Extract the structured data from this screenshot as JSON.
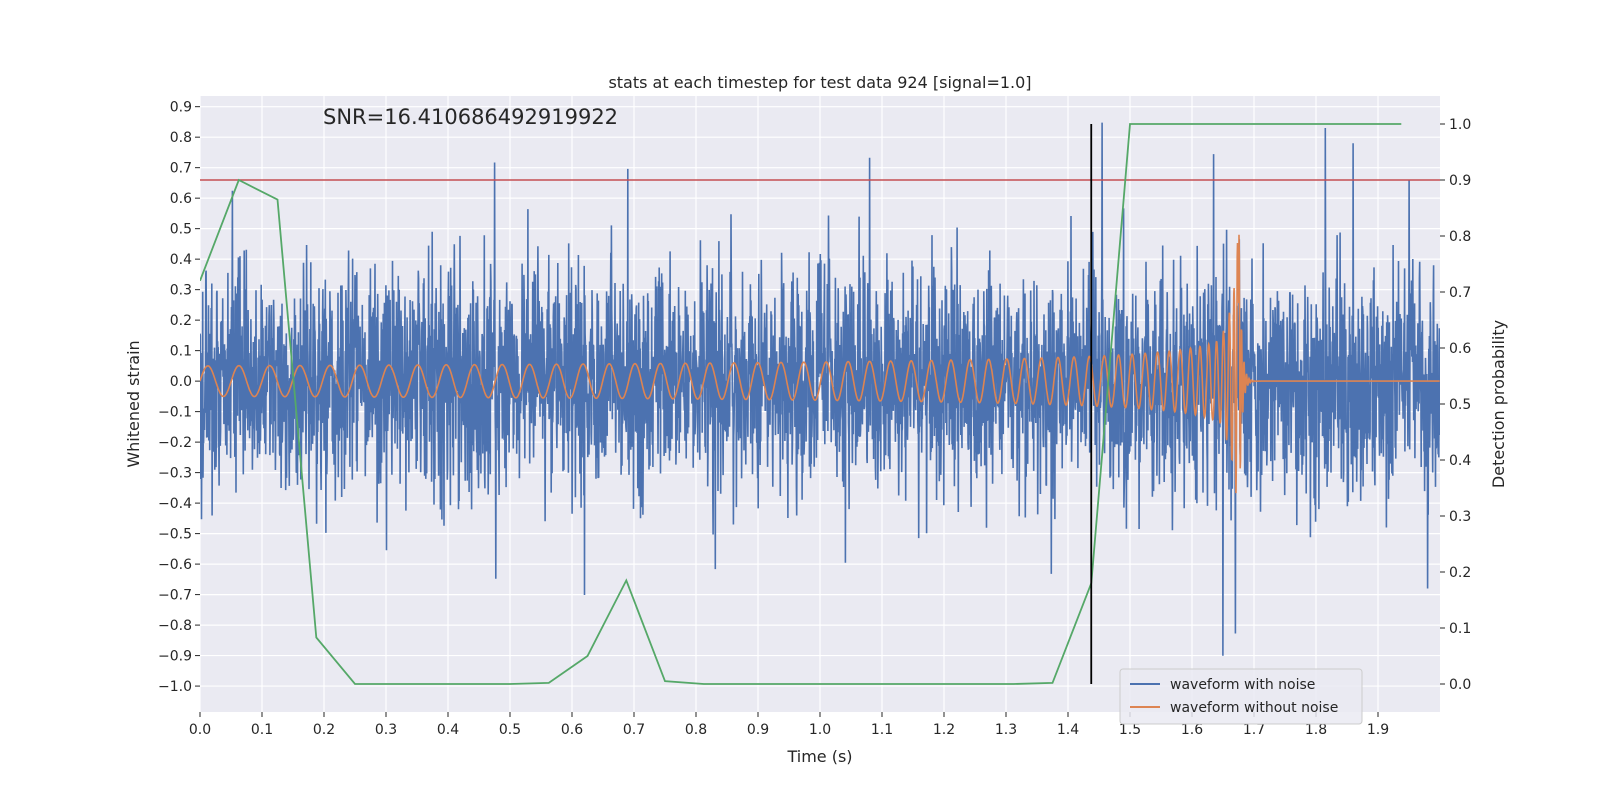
{
  "chart_data": {
    "type": "line",
    "title": "stats at each timestep for test data 924 [signal=1.0]",
    "annotation": "SNR=16.410686492919922",
    "xlabel": "Time (s)",
    "ylabel_left": "Whitened strain",
    "ylabel_right": "Detection probability",
    "xlim": [
      0.0,
      2.0
    ],
    "ylim_left": [
      -1.085,
      0.935
    ],
    "ylim_right": [
      -0.05,
      1.05
    ],
    "x_ticks": [
      "0.0",
      "0.1",
      "0.2",
      "0.3",
      "0.4",
      "0.5",
      "0.6",
      "0.7",
      "0.8",
      "0.9",
      "1.0",
      "1.1",
      "1.2",
      "1.3",
      "1.4",
      "1.5",
      "1.6",
      "1.7",
      "1.8",
      "1.9"
    ],
    "y_ticks_left": [
      "0.9",
      "0.8",
      "0.7",
      "0.6",
      "0.5",
      "0.4",
      "0.3",
      "0.2",
      "0.1",
      "0.0",
      "−0.1",
      "−0.2",
      "−0.3",
      "−0.4",
      "−0.5",
      "−0.6",
      "−0.7",
      "−0.8",
      "−0.9",
      "−1.0"
    ],
    "y_ticks_right": [
      "1.0",
      "0.9",
      "0.8",
      "0.7",
      "0.6",
      "0.5",
      "0.4",
      "0.3",
      "0.2",
      "0.1",
      "0.0"
    ],
    "grid": true,
    "legend_position": "bottom-right",
    "colors": {
      "noisy": "#4c72b0",
      "clean": "#dd8452",
      "probability": "#55a868",
      "threshold": "#c44e52",
      "marker": "#000000",
      "background": "#eaeaf2"
    },
    "series": [
      {
        "name": "waveform with noise",
        "description_values": "white-noise-like whitened strain, std about 0.2, spikes reaching about 0.72 and -0.72",
        "noise_std": 0.2,
        "notable_points": [
          [
            0.475,
            0.72
          ],
          [
            0.477,
            -0.65
          ],
          [
            0.69,
            0.7
          ],
          [
            0.62,
            -0.72
          ],
          [
            1.08,
            0.71
          ],
          [
            1.455,
            0.83
          ],
          [
            1.635,
            0.78
          ],
          [
            1.65,
            -0.95
          ],
          [
            1.67,
            -0.76
          ],
          [
            1.815,
            0.83
          ],
          [
            1.86,
            0.78
          ],
          [
            1.95,
            0.66
          ],
          [
            1.98,
            -0.68
          ]
        ]
      },
      {
        "name": "waveform without noise",
        "description_values": "chirp: amplitude 0.05 at t=0 growing to about 0.6 at merger t≈1.675, frequency rising, ringdown to 0 after",
        "merger_time": 1.675,
        "start_amplitude": 0.05,
        "peak_amplitude": 0.62
      },
      {
        "name": "detection probability",
        "axis": "right",
        "x": [
          0.0,
          0.0625,
          0.125,
          0.1875,
          0.25,
          0.3125,
          0.375,
          0.4375,
          0.5,
          0.5625,
          0.625,
          0.6875,
          0.75,
          0.8125,
          0.875,
          0.9375,
          1.0,
          1.0625,
          1.125,
          1.1875,
          1.25,
          1.3125,
          1.375,
          1.4375,
          1.5,
          1.5625,
          1.625,
          1.6875,
          1.75,
          1.8125,
          1.875,
          1.9375
        ],
        "y": [
          0.72,
          0.9,
          0.865,
          0.083,
          0.0,
          0.0,
          0.0,
          0.0,
          0.0,
          0.002,
          0.05,
          0.185,
          0.005,
          0.0,
          0.0,
          0.0,
          0.0,
          0.0,
          0.0,
          0.0,
          0.0,
          0.0,
          0.002,
          0.18,
          1.0,
          1.0,
          1.0,
          1.0,
          1.0,
          1.0,
          1.0,
          1.0
        ]
      }
    ],
    "threshold_line": {
      "axis": "right",
      "y": 0.9
    },
    "marker_line": {
      "x": 1.4375,
      "y_top": 1.0,
      "y_bottom": 0.0
    },
    "legend": [
      "waveform with noise",
      "waveform without noise"
    ]
  }
}
